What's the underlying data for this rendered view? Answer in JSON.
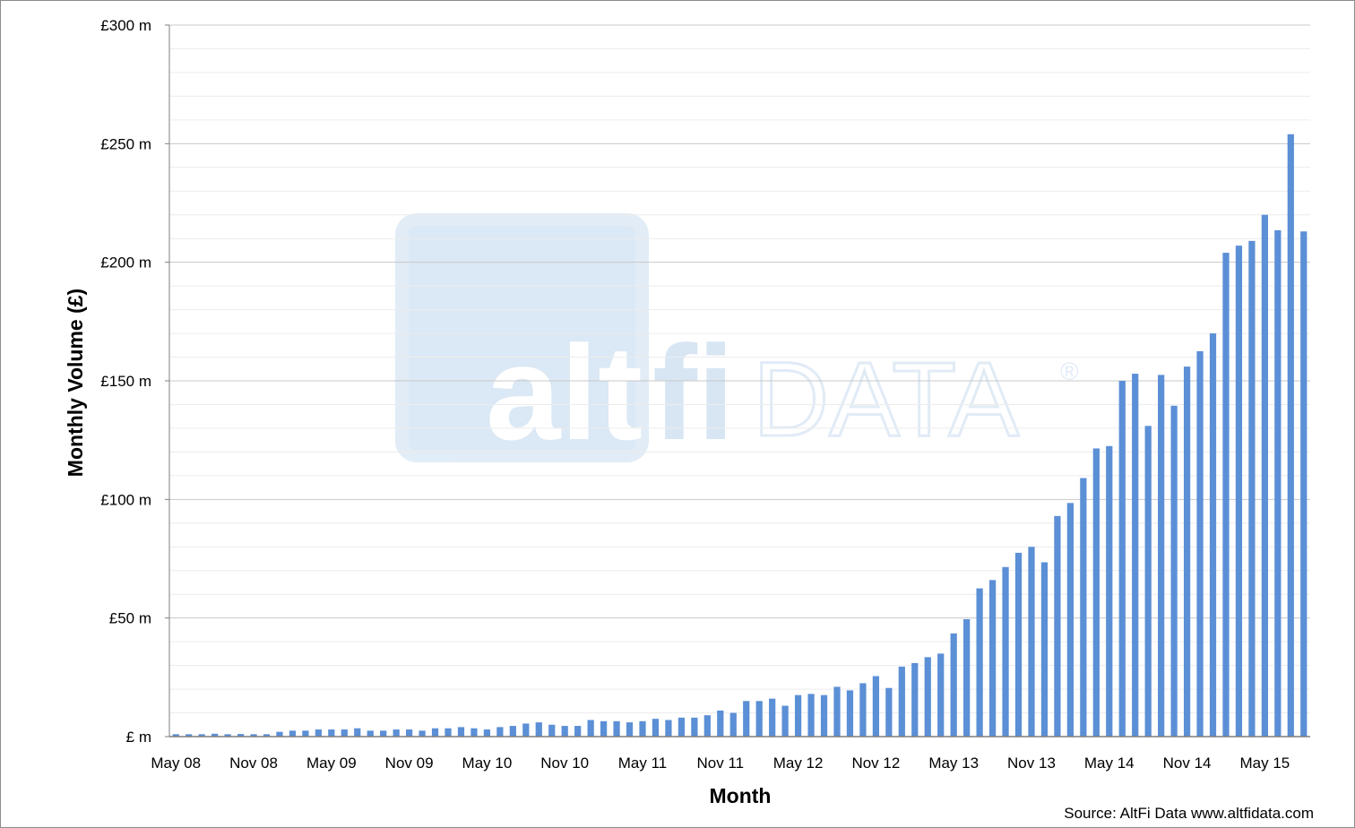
{
  "chart_data": {
    "type": "bar",
    "title": "",
    "xlabel": "Month",
    "ylabel": "Monthly Volume (£)",
    "ylim": [
      0,
      300
    ],
    "y_unit": "£ m",
    "y_ticks": [
      0,
      50,
      100,
      150,
      200,
      250,
      300
    ],
    "y_tick_labels": [
      "£ m",
      "£50 m",
      "£100 m",
      "£150 m",
      "£200 m",
      "£250 m",
      "£300 m"
    ],
    "x_tick_labels": [
      "May 08",
      "Nov 08",
      "May 09",
      "Nov 09",
      "May 10",
      "Nov 10",
      "May 11",
      "Nov 11",
      "May 12",
      "Nov 12",
      "May 13",
      "Nov 13",
      "May 14",
      "Nov 14",
      "May 15"
    ],
    "x_tick_every": 6,
    "grid": true,
    "bar_color": "#5b8fd6",
    "categories": [
      "May 08",
      "Jun 08",
      "Jul 08",
      "Aug 08",
      "Sep 08",
      "Oct 08",
      "Nov 08",
      "Dec 08",
      "Jan 09",
      "Feb 09",
      "Mar 09",
      "Apr 09",
      "May 09",
      "Jun 09",
      "Jul 09",
      "Aug 09",
      "Sep 09",
      "Oct 09",
      "Nov 09",
      "Dec 09",
      "Jan 10",
      "Feb 10",
      "Mar 10",
      "Apr 10",
      "May 10",
      "Jun 10",
      "Jul 10",
      "Aug 10",
      "Sep 10",
      "Oct 10",
      "Nov 10",
      "Dec 10",
      "Jan 11",
      "Feb 11",
      "Mar 11",
      "Apr 11",
      "May 11",
      "Jun 11",
      "Jul 11",
      "Aug 11",
      "Sep 11",
      "Oct 11",
      "Nov 11",
      "Dec 11",
      "Jan 12",
      "Feb 12",
      "Mar 12",
      "Apr 12",
      "May 12",
      "Jun 12",
      "Jul 12",
      "Aug 12",
      "Sep 12",
      "Oct 12",
      "Nov 12",
      "Dec 12",
      "Jan 13",
      "Feb 13",
      "Mar 13",
      "Apr 13",
      "May 13",
      "Jun 13",
      "Jul 13",
      "Aug 13",
      "Sep 13",
      "Oct 13",
      "Nov 13",
      "Dec 13",
      "Jan 14",
      "Feb 14",
      "Mar 14",
      "Apr 14",
      "May 14",
      "Jun 14",
      "Jul 14",
      "Aug 14",
      "Sep 14",
      "Oct 14",
      "Nov 14",
      "Dec 14",
      "Jan 15",
      "Feb 15",
      "Mar 15",
      "Apr 15",
      "May 15",
      "Jun 15",
      "Jul 15",
      "Aug 15"
    ],
    "values": [
      1.0,
      1.0,
      1.0,
      1.2,
      1.0,
      1.1,
      1.0,
      1.0,
      2.0,
      2.5,
      2.5,
      3.0,
      3.0,
      3.0,
      3.5,
      2.5,
      2.5,
      3.0,
      3.0,
      2.5,
      3.5,
      3.5,
      4.0,
      3.5,
      3.0,
      4.0,
      4.5,
      5.5,
      6.0,
      5.0,
      4.5,
      4.5,
      7.0,
      6.5,
      6.5,
      6.0,
      6.5,
      7.5,
      7.0,
      8.0,
      8.0,
      9.0,
      11.0,
      10.0,
      15.0,
      15.0,
      16.0,
      13.0,
      17.5,
      18.0,
      17.5,
      21.0,
      19.5,
      22.5,
      25.5,
      20.5,
      29.5,
      31.0,
      33.5,
      35.0,
      43.5,
      49.5,
      62.5,
      66.0,
      71.5,
      77.5,
      80.0,
      73.5,
      93.0,
      98.5,
      109.0,
      121.5,
      122.5,
      150.0,
      153.0,
      131.0,
      152.5,
      139.5,
      156.0,
      162.5,
      170.0,
      204.0,
      207.0,
      209.0,
      220.0,
      213.5,
      254.0,
      213.0
    ]
  },
  "watermark": {
    "text_a": "alt",
    "text_b": "fi",
    "text_c": "DATA",
    "registered": "®"
  },
  "source": "Source: AltFi Data www.altfidata.com"
}
